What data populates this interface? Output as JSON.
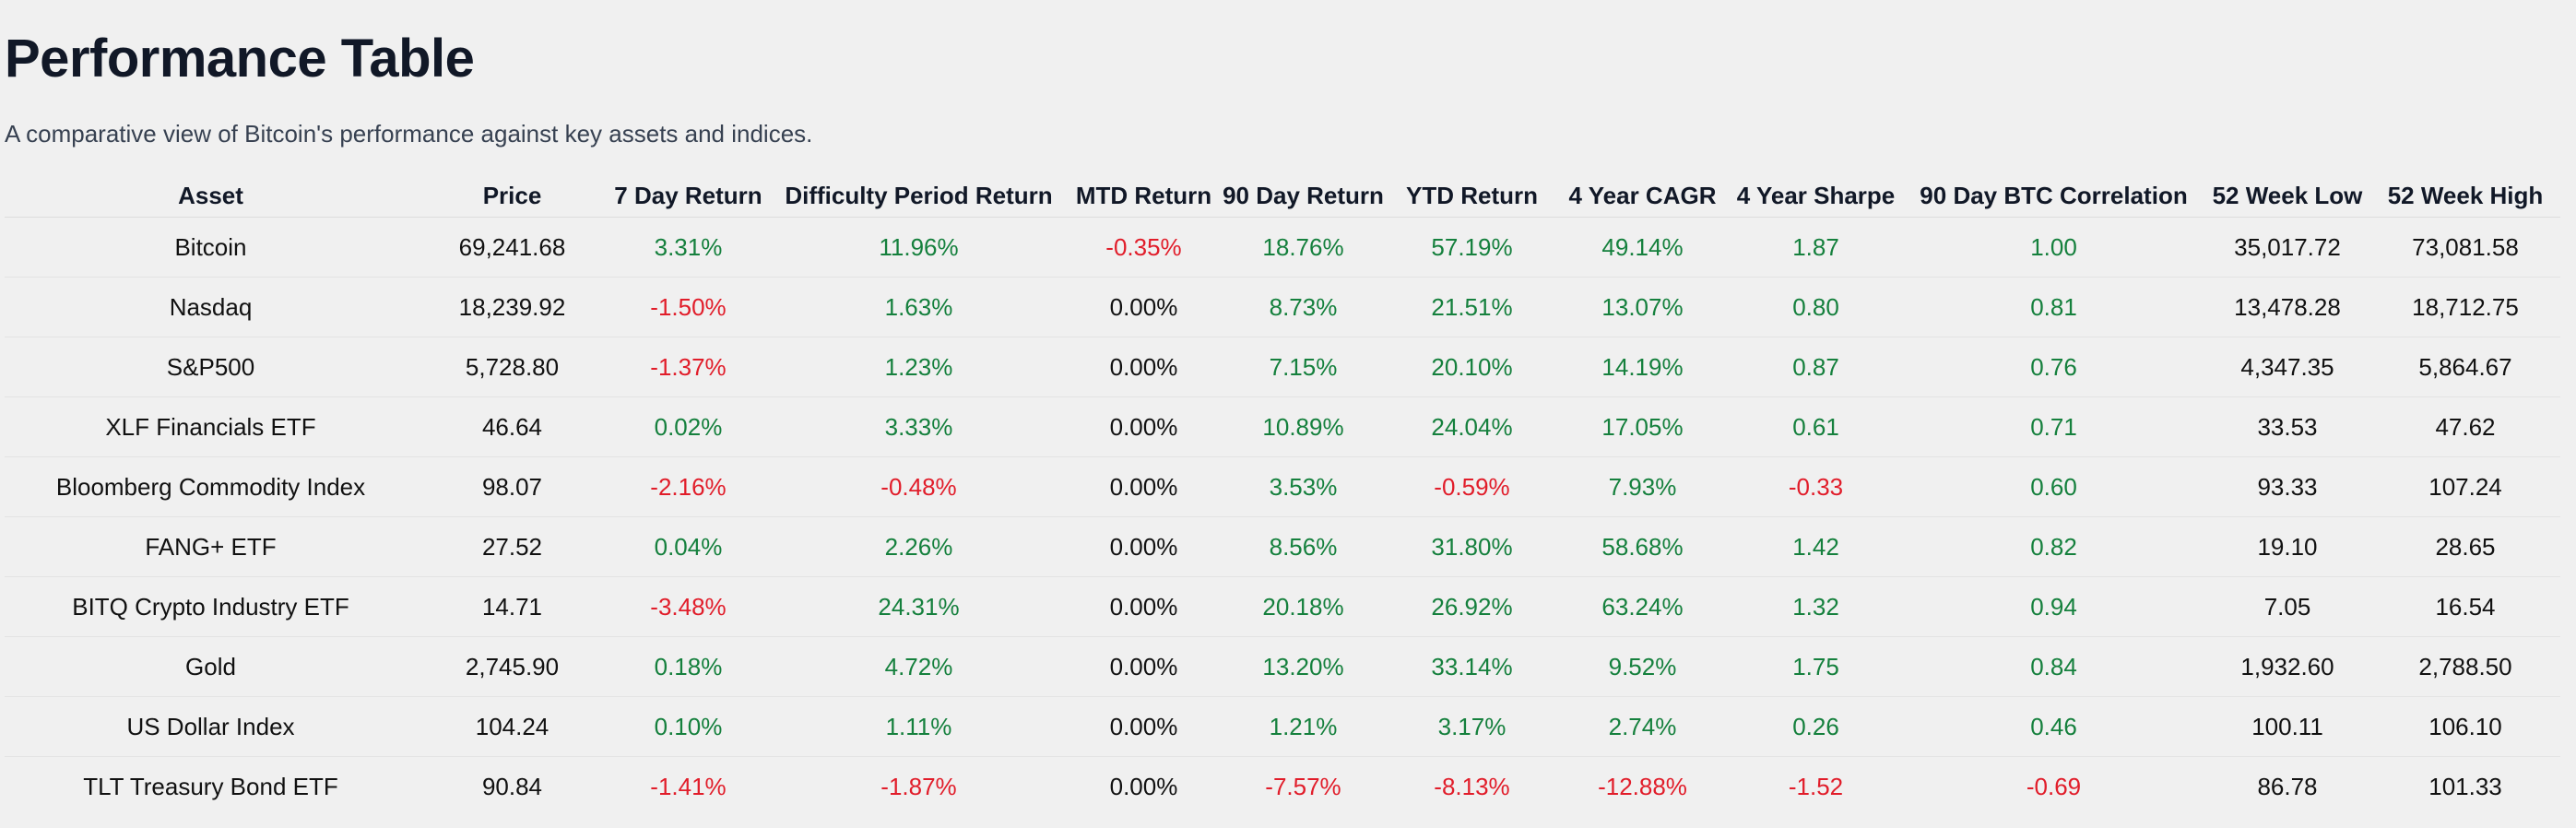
{
  "page": {
    "title": "Performance Table",
    "subtitle": "A comparative view of Bitcoin's performance against key assets and indices."
  },
  "colors": {
    "positive": "#15803d",
    "negative": "#e11d2a",
    "neutral": "#111111"
  },
  "table": {
    "columns": [
      "Asset",
      "Price",
      "7 Day Return",
      "Difficulty Period Return",
      "MTD Return",
      "90 Day Return",
      "YTD Return",
      "4 Year CAGR",
      "4 Year Sharpe",
      "90 Day BTC Correlation",
      "52 Week Low",
      "52 Week High"
    ],
    "rows": [
      [
        "Bitcoin",
        "69,241.68",
        "3.31%",
        "11.96%",
        "-0.35%",
        "18.76%",
        "57.19%",
        "49.14%",
        "1.87",
        "1.00",
        "35,017.72",
        "73,081.58"
      ],
      [
        "Nasdaq",
        "18,239.92",
        "-1.50%",
        "1.63%",
        "0.00%",
        "8.73%",
        "21.51%",
        "13.07%",
        "0.80",
        "0.81",
        "13,478.28",
        "18,712.75"
      ],
      [
        "S&P500",
        "5,728.80",
        "-1.37%",
        "1.23%",
        "0.00%",
        "7.15%",
        "20.10%",
        "14.19%",
        "0.87",
        "0.76",
        "4,347.35",
        "5,864.67"
      ],
      [
        "XLF Financials ETF",
        "46.64",
        "0.02%",
        "3.33%",
        "0.00%",
        "10.89%",
        "24.04%",
        "17.05%",
        "0.61",
        "0.71",
        "33.53",
        "47.62"
      ],
      [
        "Bloomberg Commodity Index",
        "98.07",
        "-2.16%",
        "-0.48%",
        "0.00%",
        "3.53%",
        "-0.59%",
        "7.93%",
        "-0.33",
        "0.60",
        "93.33",
        "107.24"
      ],
      [
        "FANG+ ETF",
        "27.52",
        "0.04%",
        "2.26%",
        "0.00%",
        "8.56%",
        "31.80%",
        "58.68%",
        "1.42",
        "0.82",
        "19.10",
        "28.65"
      ],
      [
        "BITQ Crypto Industry ETF",
        "14.71",
        "-3.48%",
        "24.31%",
        "0.00%",
        "20.18%",
        "26.92%",
        "63.24%",
        "1.32",
        "0.94",
        "7.05",
        "16.54"
      ],
      [
        "Gold",
        "2,745.90",
        "0.18%",
        "4.72%",
        "0.00%",
        "13.20%",
        "33.14%",
        "9.52%",
        "1.75",
        "0.84",
        "1,932.60",
        "2,788.50"
      ],
      [
        "US Dollar Index",
        "104.24",
        "0.10%",
        "1.11%",
        "0.00%",
        "1.21%",
        "3.17%",
        "2.74%",
        "0.26",
        "0.46",
        "100.11",
        "106.10"
      ],
      [
        "TLT Treasury Bond ETF",
        "90.84",
        "-1.41%",
        "-1.87%",
        "0.00%",
        "-7.57%",
        "-8.13%",
        "-12.88%",
        "-1.52",
        "-0.69",
        "86.78",
        "101.33"
      ]
    ]
  }
}
